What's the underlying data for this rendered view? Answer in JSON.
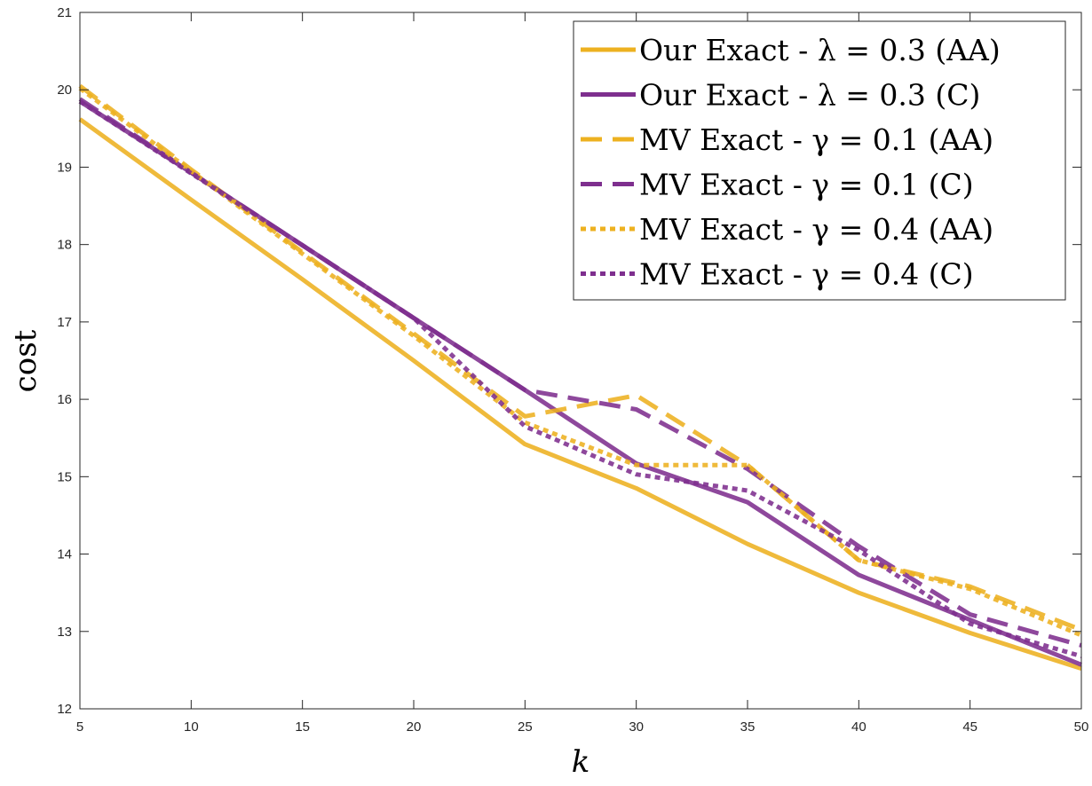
{
  "chart_data": {
    "type": "line",
    "title": "",
    "xlabel": "k",
    "ylabel": "cost",
    "xlim": [
      5,
      50
    ],
    "ylim": [
      12,
      21
    ],
    "xticks": [
      5,
      10,
      15,
      20,
      25,
      30,
      35,
      40,
      45,
      50
    ],
    "yticks": [
      12,
      13,
      14,
      15,
      16,
      17,
      18,
      19,
      20,
      21
    ],
    "grid": false,
    "legend_position": "top-right",
    "x": [
      5,
      10,
      15,
      20,
      25,
      30,
      35,
      40,
      45,
      50
    ],
    "series": [
      {
        "name": "Our Exact - λ = 0.3 (AA)",
        "color": "#EDB120",
        "dash": "solid",
        "values": [
          19.62,
          18.58,
          17.55,
          16.5,
          15.42,
          14.85,
          14.13,
          13.5,
          12.98,
          12.52
        ]
      },
      {
        "name": "Our Exact - λ = 0.3 (C)",
        "color": "#7E2F8E",
        "dash": "solid",
        "values": [
          19.85,
          18.93,
          17.99,
          17.05,
          16.12,
          15.17,
          14.67,
          13.73,
          13.15,
          12.57
        ]
      },
      {
        "name": "MV Exact - γ = 0.1 (AA)",
        "color": "#EDB120",
        "dash": "dashed",
        "values": [
          20.05,
          18.97,
          17.9,
          16.85,
          15.78,
          16.05,
          15.15,
          13.92,
          13.58,
          13.02
        ]
      },
      {
        "name": "MV Exact - γ = 0.1 (C)",
        "color": "#7E2F8E",
        "dash": "dashed",
        "values": [
          19.88,
          18.93,
          17.99,
          17.05,
          16.12,
          15.87,
          15.1,
          14.1,
          13.22,
          12.82
        ]
      },
      {
        "name": "MV Exact - γ = 0.4 (AA)",
        "color": "#EDB120",
        "dash": "dotted",
        "values": [
          20.02,
          18.95,
          17.88,
          16.82,
          15.7,
          15.15,
          15.15,
          13.92,
          13.55,
          12.95
        ]
      },
      {
        "name": "MV Exact - γ = 0.4 (C)",
        "color": "#7E2F8E",
        "dash": "dotted",
        "values": [
          19.85,
          18.92,
          17.99,
          17.05,
          15.65,
          15.03,
          14.82,
          14.05,
          13.1,
          12.68
        ]
      }
    ]
  }
}
